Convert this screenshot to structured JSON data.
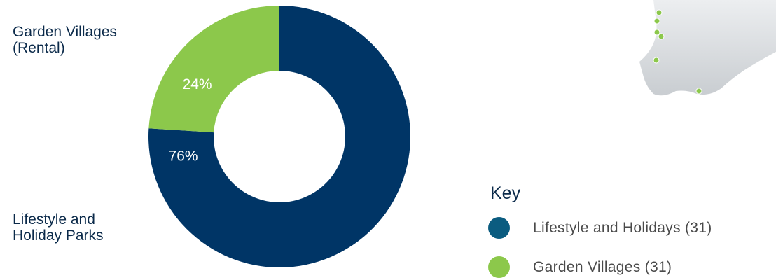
{
  "chart_data": {
    "type": "pie",
    "slices": [
      {
        "label": "Lifestyle and Holiday Parks",
        "value": 76,
        "display": "76%",
        "color": "#003566"
      },
      {
        "label": "Garden Villages (Rental)",
        "value": 24,
        "display": "24%",
        "color": "#8cc84b"
      }
    ]
  },
  "labels": {
    "garden_villages": "Garden Villages\n(Rental)",
    "lifestyle": "Lifestyle and\nHoliday Parks"
  },
  "key": {
    "title": "Key",
    "items": [
      {
        "label": "Lifestyle and Holidays (31)",
        "color": "#0b5c80"
      },
      {
        "label": "Garden Villages (31)",
        "color": "#8cc84b"
      }
    ]
  },
  "map": {
    "land_color": "#d9dcdf",
    "marker_color": "#8cc84b"
  }
}
